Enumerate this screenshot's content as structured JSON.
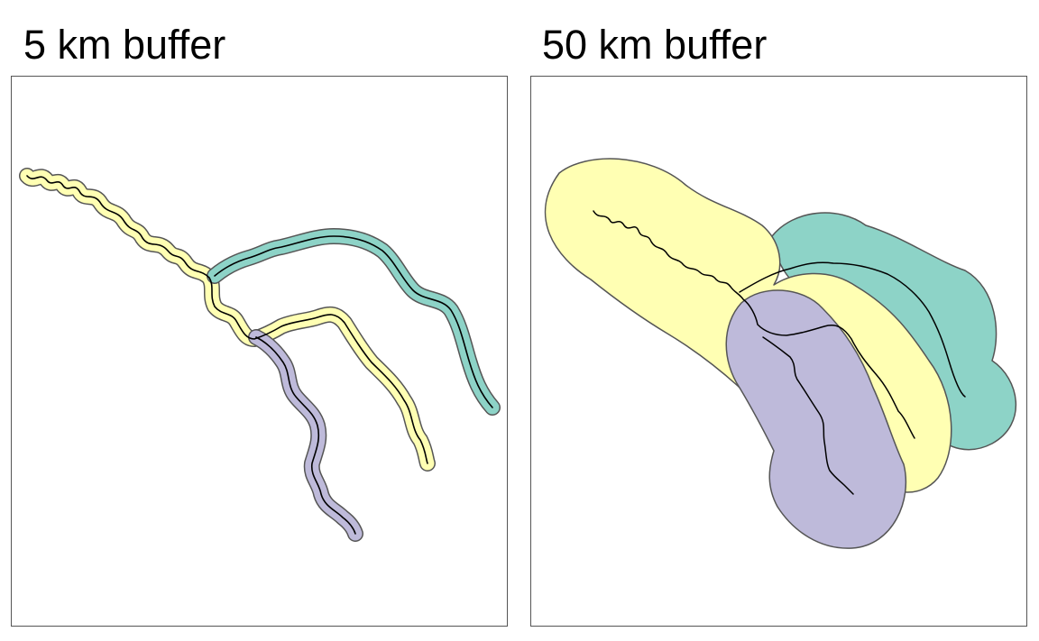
{
  "panels": [
    {
      "title": "5 km buffer",
      "buffer_km": 5
    },
    {
      "title": "50 km buffer",
      "buffer_km": 50
    }
  ],
  "colors": {
    "branch_yellow": "#ffffb3",
    "branch_teal": "#8dd3c7",
    "branch_purple": "#bebada",
    "buffer_outline": "#555555",
    "river_line": "#000000"
  }
}
